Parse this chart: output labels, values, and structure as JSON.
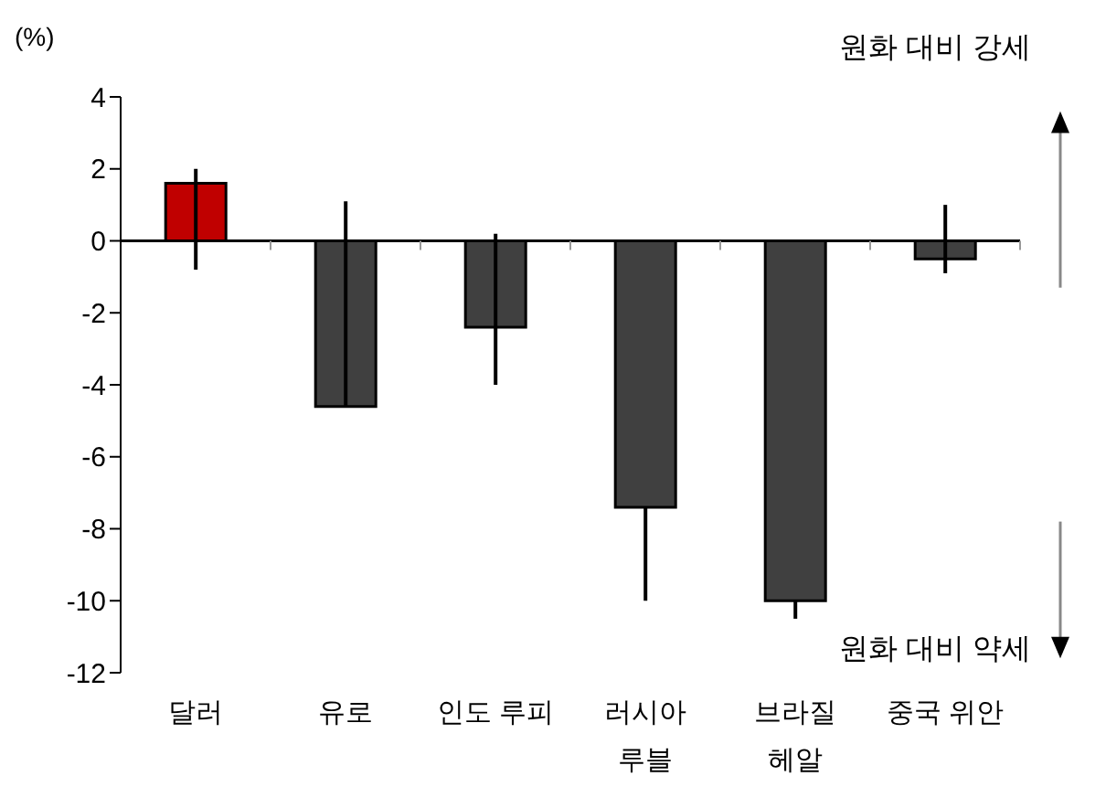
{
  "chart_data": {
    "type": "bar",
    "ylabel": "(%)",
    "categories": [
      "달러",
      "유로",
      "인도 루피",
      "러시아 루블",
      "브라질 헤알",
      "중국 위안"
    ],
    "values": [
      1.6,
      -4.6,
      -2.4,
      -7.4,
      -10.0,
      -0.5
    ],
    "colors": [
      "#c00000",
      "#404040",
      "#404040",
      "#404040",
      "#404040",
      "#404040"
    ],
    "errors": [
      [
        -0.8,
        2.0
      ],
      [
        -4.6,
        1.1
      ],
      [
        -4.0,
        0.2
      ],
      [
        -10.0,
        -7.4
      ],
      [
        -10.5,
        -10.0
      ],
      [
        -0.9,
        1.0
      ]
    ],
    "ylim": [
      -12,
      4
    ],
    "yticks": [
      -12,
      -10,
      -8,
      -6,
      -4,
      -2,
      0,
      2,
      4
    ],
    "annotations": [
      "원화 대비 강세",
      "원화 대비 약세"
    ]
  }
}
